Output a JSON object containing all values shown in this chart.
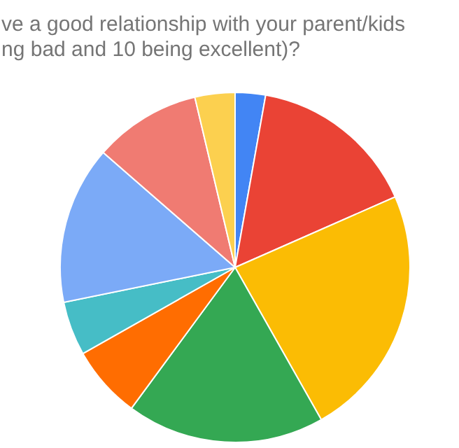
{
  "chart_data": {
    "type": "pie",
    "title": "ve a good relationship with your parent/kids\nng bad and 10 being excellent)?",
    "categories": [
      null,
      null,
      null,
      null,
      null,
      null,
      null,
      null,
      null
    ],
    "values": [
      2.8,
      15.6,
      23.4,
      18.3,
      6.7,
      5,
      14.6,
      9.9,
      3.7
    ],
    "colors": [
      "#4285f4",
      "#ea4335",
      "#fbbc04",
      "#34a853",
      "#ff6d01",
      "#46bdc6",
      "#7baaf7",
      "#f07b72",
      "#fcd04f"
    ],
    "legend": false
  }
}
